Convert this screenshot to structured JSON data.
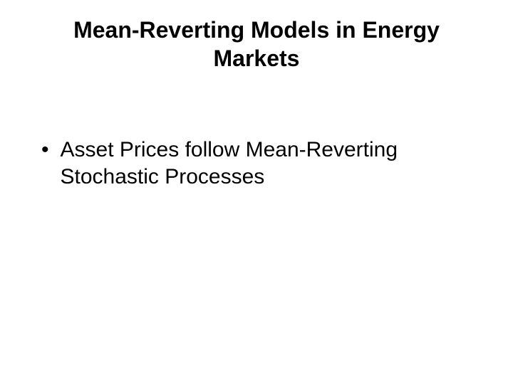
{
  "slide": {
    "title": "Mean-Reverting Models in Energy Markets",
    "bullets": [
      {
        "text": "Asset Prices follow Mean-Reverting Stochastic Processes"
      }
    ],
    "styling": {
      "background_color": "#ffffff",
      "text_color": "#000000",
      "font_family": "Arial",
      "title_fontsize": 32,
      "title_fontweight": "bold",
      "body_fontsize": 30,
      "bullet_marker": "•"
    }
  }
}
